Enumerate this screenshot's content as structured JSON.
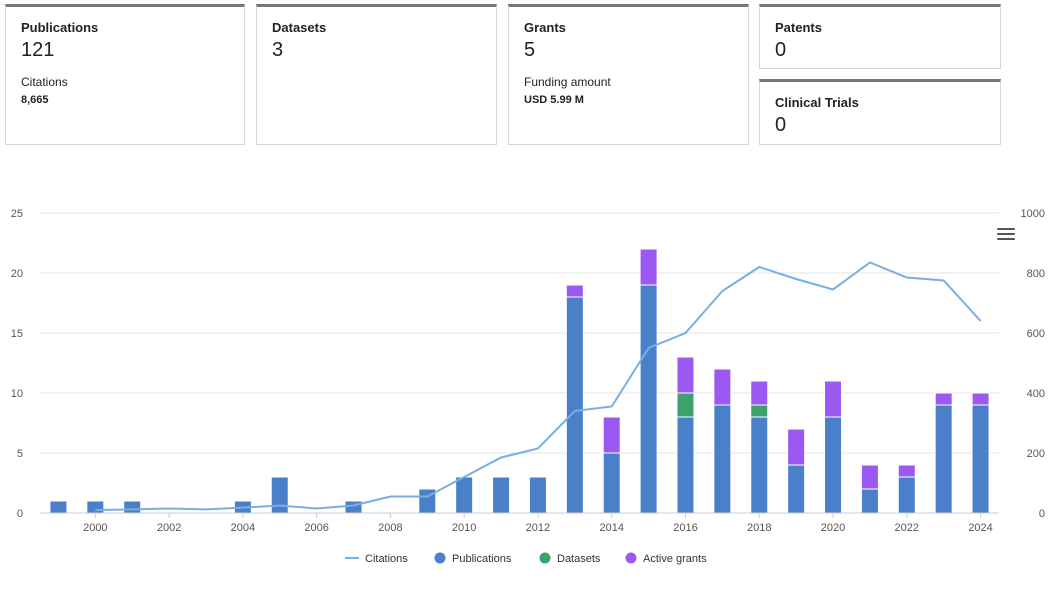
{
  "cards": {
    "publications": {
      "label": "Publications",
      "value": "121",
      "sub_label": "Citations",
      "sub_value": "8,665"
    },
    "datasets": {
      "label": "Datasets",
      "value": "3"
    },
    "grants": {
      "label": "Grants",
      "value": "5",
      "sub_label": "Funding amount",
      "sub_value": "USD 5.99 M"
    },
    "patents": {
      "label": "Patents",
      "value": "0"
    },
    "clinical_trials": {
      "label": "Clinical Trials",
      "value": "0"
    }
  },
  "colors": {
    "publications": "#4a7fc9",
    "datasets": "#3ea06b",
    "active_grants": "#9b59f2",
    "citations": "#7aaee0",
    "grid": "#e6e6e6",
    "axis_text": "#555555"
  },
  "chart_data": {
    "type": "bar",
    "stacked": true,
    "x": [
      1999,
      2000,
      2001,
      2002,
      2003,
      2004,
      2005,
      2006,
      2007,
      2008,
      2009,
      2010,
      2011,
      2012,
      2013,
      2014,
      2015,
      2016,
      2017,
      2018,
      2019,
      2020,
      2021,
      2022,
      2023,
      2024
    ],
    "x_tick_labels": [
      "2000",
      "2002",
      "2004",
      "2006",
      "2008",
      "2010",
      "2012",
      "2014",
      "2016",
      "2018",
      "2020",
      "2022",
      "2024"
    ],
    "x_tick_values": [
      2000,
      2002,
      2004,
      2006,
      2008,
      2010,
      2012,
      2014,
      2016,
      2018,
      2020,
      2022,
      2024
    ],
    "y_left": {
      "min": 0,
      "max": 25,
      "ticks": [
        0,
        5,
        10,
        15,
        20,
        25
      ]
    },
    "y_right": {
      "min": 0,
      "max": 1000,
      "ticks": [
        0,
        200,
        400,
        600,
        800,
        1000
      ]
    },
    "series": [
      {
        "name": "Publications",
        "axis": "left",
        "type": "bar",
        "values": [
          1,
          1,
          1,
          0,
          0,
          1,
          3,
          0,
          1,
          0,
          2,
          3,
          3,
          3,
          18,
          5,
          19,
          8,
          9,
          8,
          4,
          8,
          2,
          3,
          9,
          9
        ]
      },
      {
        "name": "Datasets",
        "axis": "left",
        "type": "bar",
        "values": [
          0,
          0,
          0,
          0,
          0,
          0,
          0,
          0,
          0,
          0,
          0,
          0,
          0,
          0,
          0,
          0,
          0,
          2,
          0,
          1,
          0,
          0,
          0,
          0,
          0,
          0
        ]
      },
      {
        "name": "Active grants",
        "axis": "left",
        "type": "bar",
        "values": [
          0,
          0,
          0,
          0,
          0,
          0,
          0,
          0,
          0,
          0,
          0,
          0,
          0,
          0,
          1,
          3,
          3,
          3,
          3,
          2,
          3,
          3,
          2,
          1,
          1,
          1
        ]
      },
      {
        "name": "Citations",
        "axis": "right",
        "type": "line",
        "values": [
          null,
          10,
          12,
          15,
          12,
          18,
          25,
          15,
          25,
          55,
          55,
          120,
          185,
          215,
          340,
          355,
          550,
          600,
          740,
          820,
          780,
          745,
          835,
          785,
          775,
          640
        ]
      }
    ],
    "legend": [
      "Citations",
      "Publications",
      "Datasets",
      "Active grants"
    ],
    "legend_position": "bottom"
  }
}
